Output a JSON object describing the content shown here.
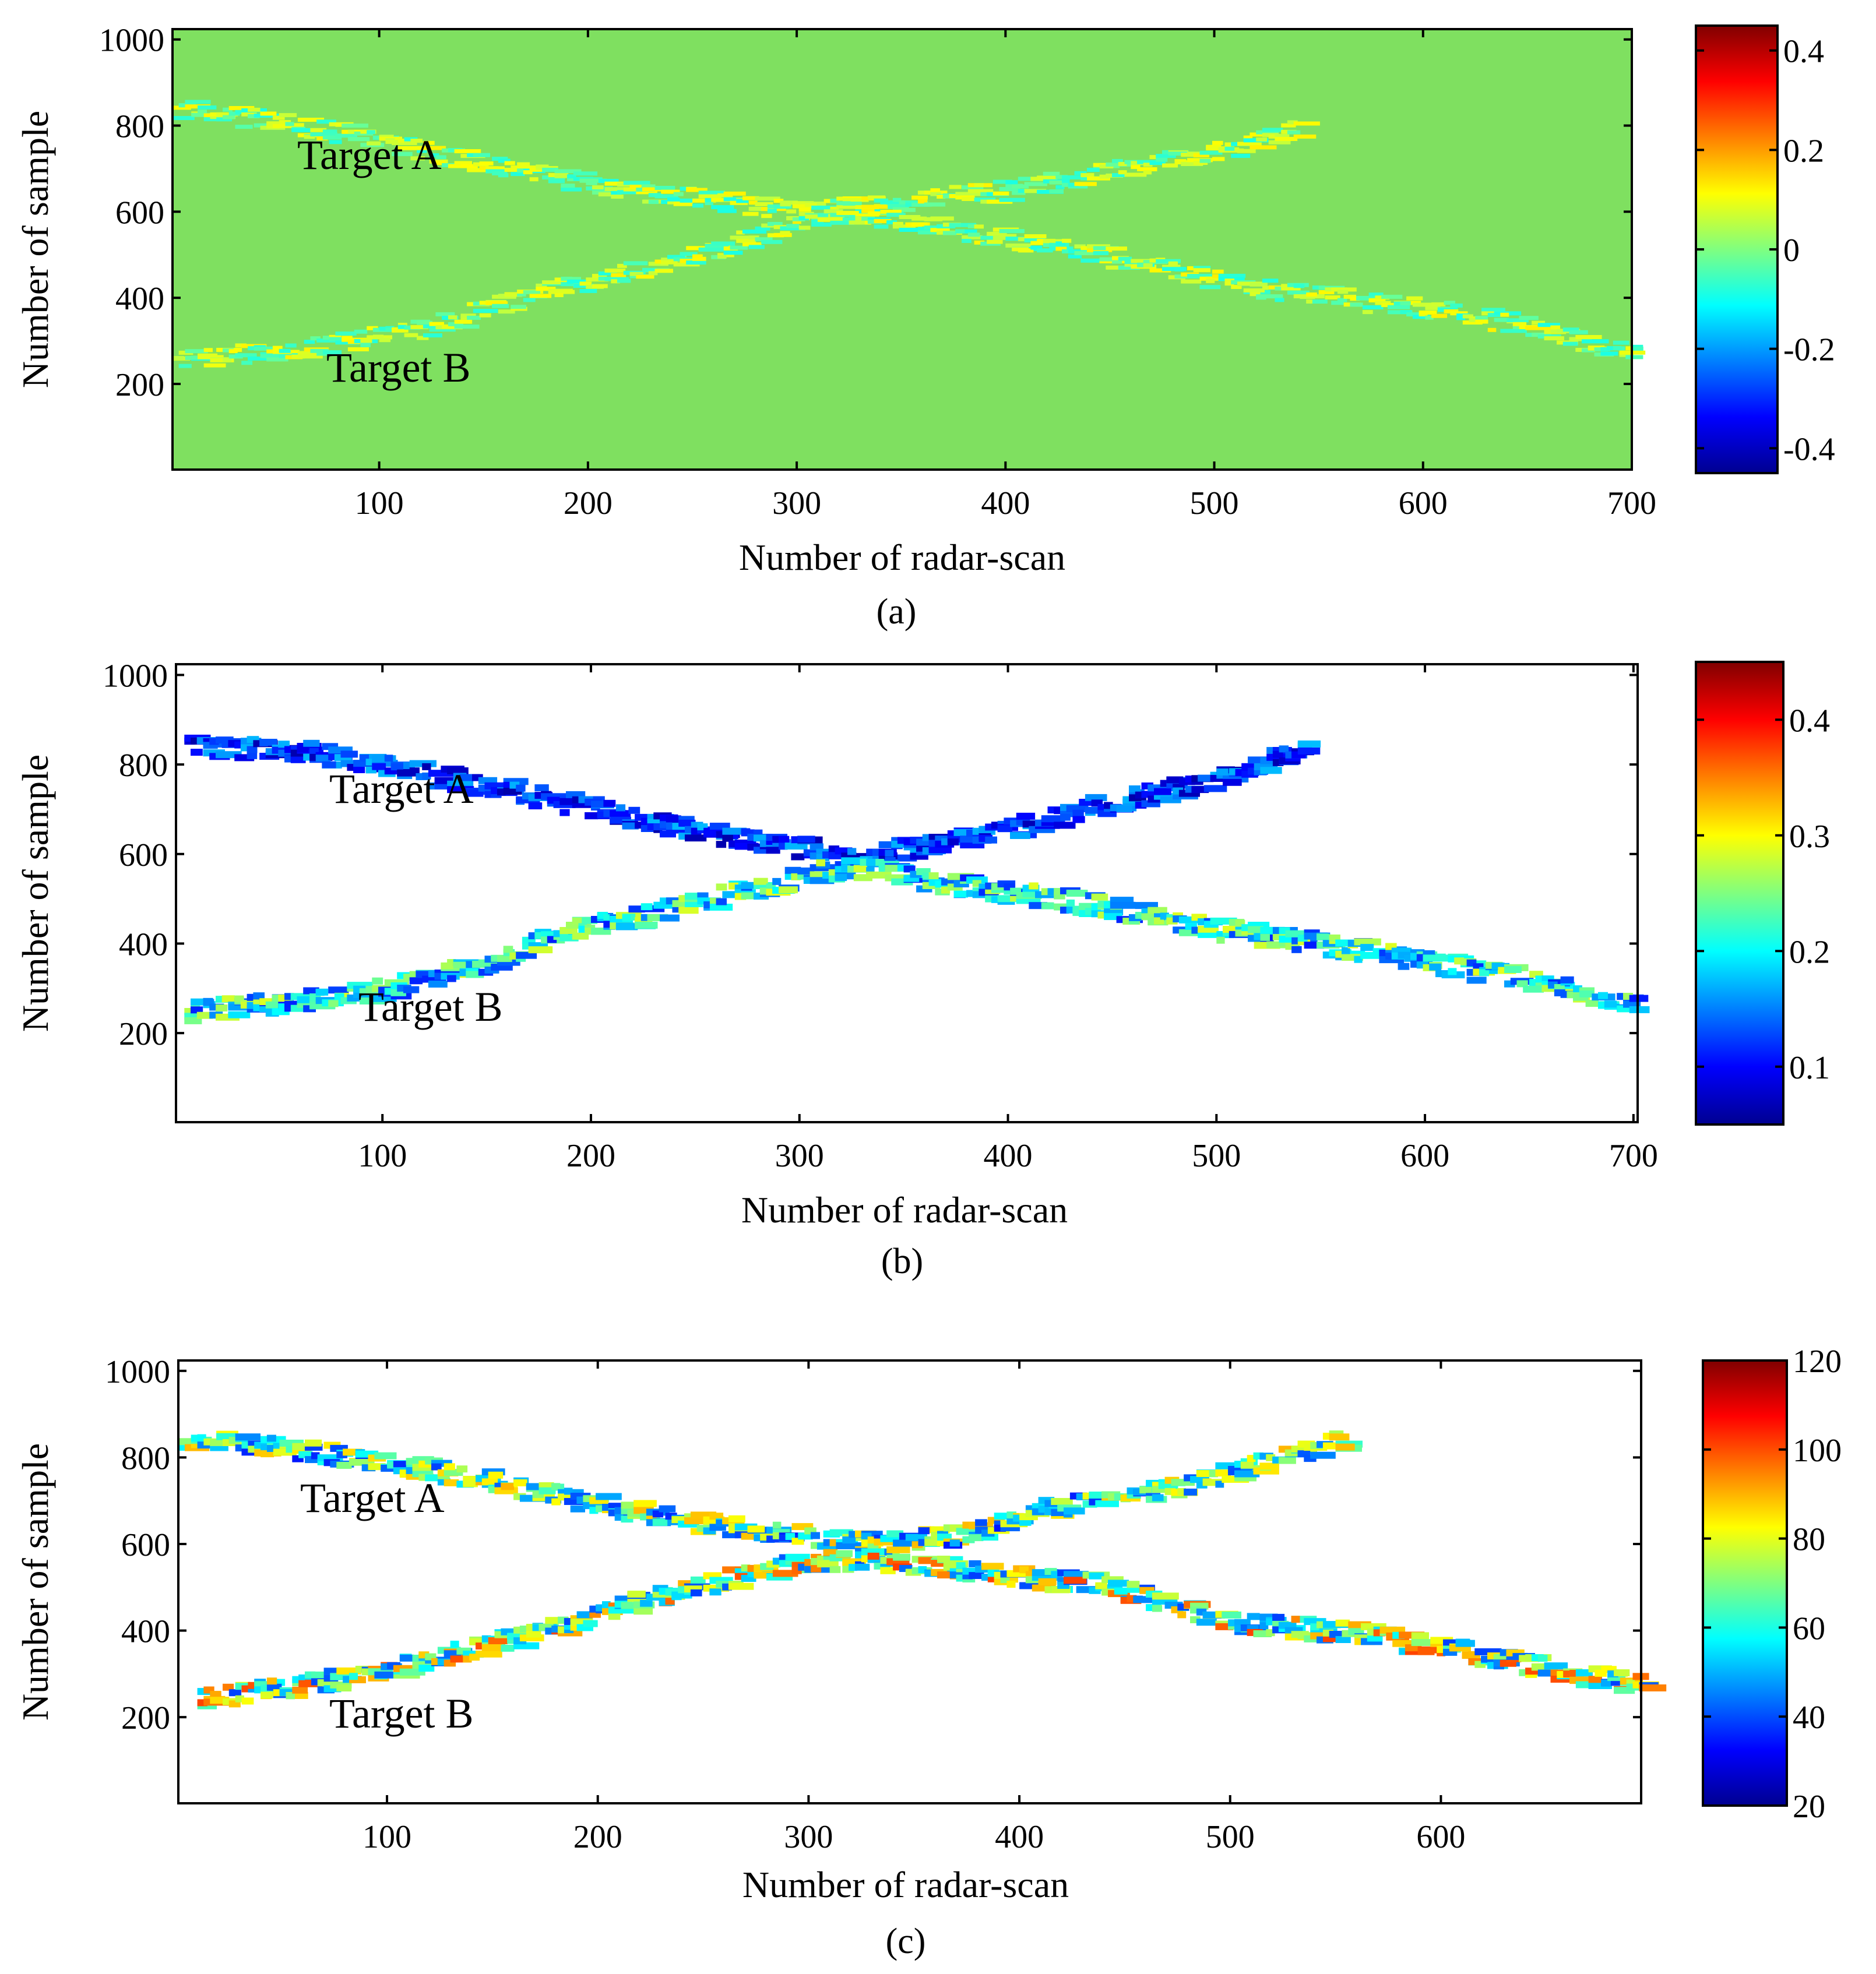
{
  "figure": {
    "panels": [
      "a",
      "b",
      "c"
    ]
  },
  "chart_data": [
    {
      "type": "heatmap",
      "caption": "(a)",
      "xlabel": "Number of radar-scan",
      "ylabel": "Number of sample",
      "xlim": [
        1,
        700
      ],
      "ylim": [
        1,
        1024
      ],
      "xticks": [
        100,
        200,
        300,
        400,
        500,
        600,
        700
      ],
      "yticks": [
        200,
        400,
        600,
        800,
        1000
      ],
      "colorbar": {
        "min": -0.45,
        "max": 0.45,
        "ticks": [
          0.4,
          0.2,
          0,
          -0.2,
          -0.4
        ],
        "tick_labels": [
          "0.4",
          "0.2",
          "0",
          "-0.2",
          "-0.4"
        ]
      },
      "background": "#7fe060",
      "annotations": [
        {
          "text": "Target A",
          "x": 60,
          "y": 740
        },
        {
          "text": "Target B",
          "x": 75,
          "y": 240
        }
      ],
      "tracks": [
        {
          "name": "Target A",
          "points": [
            [
              1,
              840
            ],
            [
              60,
              800
            ],
            [
              120,
              740
            ],
            [
              200,
              660
            ],
            [
              300,
              600
            ],
            [
              400,
              650
            ],
            [
              500,
              740
            ],
            [
              540,
              800
            ]
          ],
          "value": 0.05
        },
        {
          "name": "Target B",
          "points": [
            [
              1,
              260
            ],
            [
              60,
              280
            ],
            [
              120,
              330
            ],
            [
              180,
              420
            ],
            [
              250,
              500
            ],
            [
              320,
              600
            ],
            [
              420,
              520
            ],
            [
              520,
              420
            ],
            [
              620,
              360
            ],
            [
              700,
              270
            ]
          ],
          "value": 0.12
        }
      ]
    },
    {
      "type": "heatmap",
      "caption": "(b)",
      "xlabel": "Number of radar-scan",
      "ylabel": "Number of sample",
      "xlim": [
        1,
        702
      ],
      "ylim": [
        1,
        1024
      ],
      "xticks": [
        100,
        200,
        300,
        400,
        500,
        600,
        700
      ],
      "yticks": [
        200,
        400,
        600,
        800,
        1000
      ],
      "colorbar": {
        "min": 0.05,
        "max": 0.45,
        "ticks": [
          0.4,
          0.3,
          0.2,
          0.1
        ],
        "tick_labels": [
          "0.4",
          "0.3",
          "0.2",
          "0.1"
        ]
      },
      "background": "#ffffff",
      "annotations": [
        {
          "text": "Target A",
          "x": 75,
          "y": 700
        },
        {
          "text": "Target B",
          "x": 88,
          "y": 250
        }
      ],
      "tracks": [
        {
          "name": "Target A",
          "points": [
            [
              5,
              840
            ],
            [
              60,
              830
            ],
            [
              120,
              775
            ],
            [
              180,
              720
            ],
            [
              240,
              660
            ],
            [
              290,
              620
            ],
            [
              320,
              590
            ],
            [
              360,
              620
            ],
            [
              400,
              660
            ],
            [
              450,
              720
            ],
            [
              500,
              770
            ],
            [
              540,
              840
            ]
          ],
          "value": 0.12
        },
        {
          "name": "Target B",
          "points": [
            [
              5,
              250
            ],
            [
              50,
              265
            ],
            [
              100,
              300
            ],
            [
              150,
              360
            ],
            [
              180,
              420
            ],
            [
              230,
              470
            ],
            [
              280,
              530
            ],
            [
              320,
              570
            ],
            [
              360,
              540
            ],
            [
              420,
              500
            ],
            [
              500,
              430
            ],
            [
              560,
              390
            ],
            [
              620,
              340
            ],
            [
              660,
              310
            ],
            [
              700,
              260
            ]
          ],
          "value": 0.2
        }
      ]
    },
    {
      "type": "heatmap",
      "caption": "(c)",
      "xlabel": "Number of radar-scan",
      "ylabel": "Number of sample",
      "xlim": [
        1,
        695
      ],
      "ylim": [
        1,
        1024
      ],
      "xticks": [
        100,
        200,
        300,
        400,
        500,
        600
      ],
      "yticks": [
        200,
        400,
        600,
        800,
        1000
      ],
      "colorbar": {
        "min": 20,
        "max": 120,
        "ticks": [
          120,
          100,
          80,
          60,
          40,
          20
        ],
        "tick_labels": [
          "120",
          "100",
          "80",
          "60",
          "40",
          "20"
        ]
      },
      "background": "#ffffff",
      "annotations": [
        {
          "text": "Target A",
          "x": 60,
          "y": 690
        },
        {
          "text": "Target B",
          "x": 72,
          "y": 190
        }
      ],
      "tracks": [
        {
          "name": "Target A",
          "points": [
            [
              1,
              840
            ],
            [
              40,
              830
            ],
            [
              80,
              800
            ],
            [
              130,
              760
            ],
            [
              190,
              700
            ],
            [
              240,
              650
            ],
            [
              290,
              620
            ],
            [
              330,
              600
            ],
            [
              370,
              620
            ],
            [
              410,
              680
            ],
            [
              460,
              720
            ],
            [
              510,
              780
            ],
            [
              550,
              840
            ]
          ],
          "value": 62
        },
        {
          "name": "Target B",
          "points": [
            [
              10,
              240
            ],
            [
              50,
              270
            ],
            [
              90,
              300
            ],
            [
              140,
              360
            ],
            [
              170,
              400
            ],
            [
              220,
              470
            ],
            [
              260,
              520
            ],
            [
              300,
              560
            ],
            [
              340,
              560
            ],
            [
              390,
              530
            ],
            [
              440,
              500
            ],
            [
              500,
              420
            ],
            [
              560,
              390
            ],
            [
              620,
              340
            ],
            [
              660,
              300
            ],
            [
              695,
              275
            ]
          ],
          "value": 70
        }
      ]
    }
  ]
}
